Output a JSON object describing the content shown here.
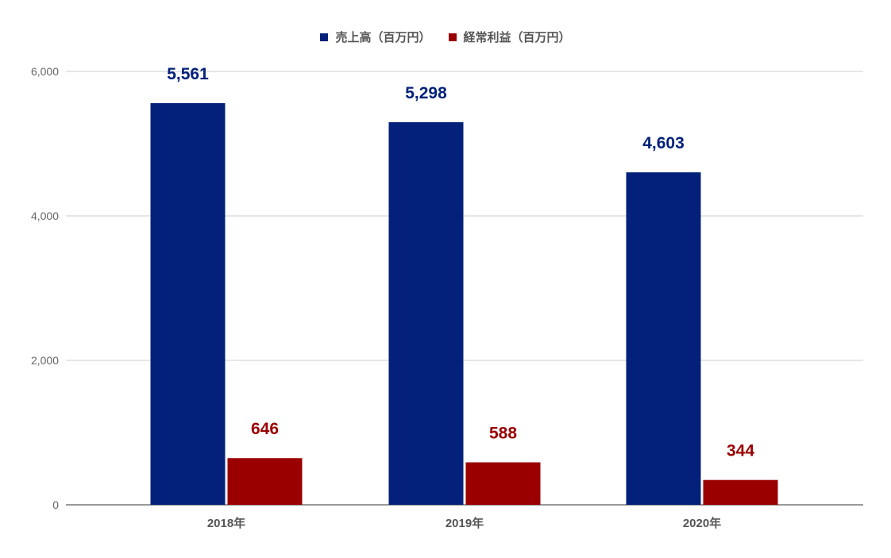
{
  "chart_data": {
    "type": "bar",
    "categories": [
      "2018年",
      "2019年",
      "2020年"
    ],
    "series": [
      {
        "name": "売上高（百万円）",
        "values": [
          5561,
          5298,
          4603
        ],
        "labels": [
          "5,561",
          "5,298",
          "4,603"
        ],
        "color": "#03217a"
      },
      {
        "name": "経常利益（百万円）",
        "values": [
          646,
          588,
          344
        ],
        "labels": [
          "646",
          "588",
          "344"
        ],
        "color": "#9a0000"
      }
    ],
    "ylim": [
      0,
      6000
    ],
    "yticks": [
      0,
      2000,
      4000,
      6000
    ],
    "ytick_labels": [
      "0",
      "2,000",
      "4,000",
      "6,000"
    ],
    "xlabel": "",
    "ylabel": "",
    "grid": true,
    "legend": "top-center"
  }
}
